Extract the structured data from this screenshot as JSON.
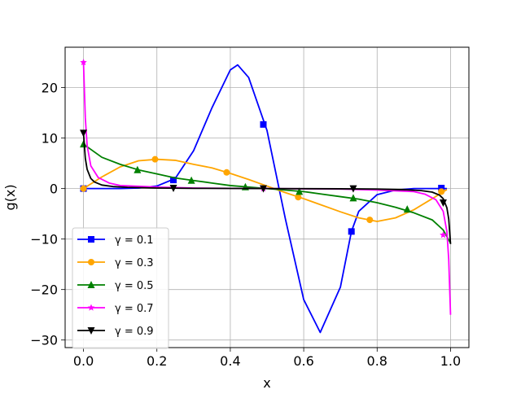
{
  "chart_data": {
    "type": "line",
    "title": "",
    "xlabel": "x",
    "ylabel": "g(x)",
    "xlim": [
      -0.05,
      1.05
    ],
    "ylim": [
      -31.5,
      28
    ],
    "xticks": [
      0.0,
      0.2,
      0.4,
      0.6,
      0.8,
      1.0
    ],
    "xtick_labels": [
      "0.0",
      "0.2",
      "0.4",
      "0.6",
      "0.8",
      "1.0"
    ],
    "yticks": [
      -30,
      -20,
      -10,
      0,
      10,
      20
    ],
    "ytick_labels": [
      "−30",
      "−20",
      "−10",
      "0",
      "10",
      "20"
    ],
    "grid": true,
    "legend_position": "lower-left",
    "series": [
      {
        "name": "γ = 0.1",
        "color": "#0000ff",
        "marker": "square",
        "x": [
          0.0,
          0.05,
          0.1,
          0.15,
          0.2,
          0.25,
          0.3,
          0.35,
          0.4,
          0.42,
          0.45,
          0.5,
          0.55,
          0.6,
          0.645,
          0.7,
          0.73,
          0.75,
          0.8,
          0.85,
          0.9,
          0.95,
          0.975,
          0.99
        ],
        "y": [
          0.0,
          0.0,
          0.0,
          0.1,
          0.5,
          2.0,
          7.5,
          16.0,
          23.5,
          24.5,
          22.0,
          11.5,
          -6.0,
          -22.0,
          -28.5,
          -19.5,
          -8.5,
          -4.5,
          -1.2,
          -0.3,
          0.0,
          0.0,
          0.0,
          0.0
        ],
        "marker_x": [
          0.0,
          0.245,
          0.49,
          0.73,
          0.975
        ],
        "marker_y": [
          0.0,
          1.7,
          12.7,
          -8.5,
          0.1
        ]
      },
      {
        "name": "γ = 0.3",
        "color": "#ffa500",
        "marker": "circle",
        "x": [
          0.0,
          0.05,
          0.1,
          0.15,
          0.2,
          0.25,
          0.3,
          0.35,
          0.4,
          0.45,
          0.5,
          0.55,
          0.6,
          0.65,
          0.7,
          0.75,
          0.8,
          0.85,
          0.9,
          0.95,
          0.99
        ],
        "y": [
          0.0,
          2.3,
          4.3,
          5.5,
          5.8,
          5.6,
          4.8,
          4.1,
          3.0,
          1.8,
          0.5,
          -0.8,
          -2.0,
          -3.3,
          -4.6,
          -5.8,
          -6.5,
          -5.8,
          -4.2,
          -2.0,
          -0.2
        ],
        "marker_x": [
          0.0,
          0.195,
          0.39,
          0.585,
          0.78,
          0.975
        ],
        "marker_y": [
          0.0,
          5.8,
          3.2,
          -1.7,
          -6.2,
          -0.6
        ]
      },
      {
        "name": "γ = 0.5",
        "color": "#008000",
        "marker": "triangle-up",
        "x": [
          0.0,
          0.05,
          0.1,
          0.15,
          0.2,
          0.25,
          0.3,
          0.35,
          0.4,
          0.45,
          0.5,
          0.55,
          0.6,
          0.65,
          0.7,
          0.75,
          0.8,
          0.85,
          0.9,
          0.95,
          0.98,
          1.0
        ],
        "y": [
          8.8,
          6.2,
          4.8,
          3.7,
          2.9,
          2.1,
          1.6,
          1.1,
          0.6,
          0.3,
          0.0,
          -0.3,
          -0.6,
          -1.1,
          -1.6,
          -2.1,
          -2.8,
          -3.7,
          -4.8,
          -6.2,
          -8.2,
          -10.8
        ],
        "marker_x": [
          0.0,
          0.147,
          0.294,
          0.441,
          0.588,
          0.735,
          0.882
        ],
        "marker_y": [
          8.8,
          3.7,
          1.6,
          0.3,
          -0.6,
          -1.9,
          -4.1
        ]
      },
      {
        "name": "γ = 0.7",
        "color": "#ff00ff",
        "marker": "star",
        "x": [
          0.0,
          0.005,
          0.01,
          0.02,
          0.04,
          0.07,
          0.1,
          0.2,
          0.3,
          0.4,
          0.5,
          0.6,
          0.7,
          0.8,
          0.9,
          0.93,
          0.96,
          0.98,
          0.99,
          0.995,
          1.0
        ],
        "y": [
          25.0,
          14.0,
          8.5,
          4.5,
          2.2,
          1.1,
          0.6,
          0.3,
          0.1,
          0.05,
          0.0,
          -0.05,
          -0.1,
          -0.3,
          -0.6,
          -1.1,
          -2.2,
          -4.5,
          -8.5,
          -14.0,
          -25.0
        ],
        "marker_x": [
          0.0,
          0.49,
          0.98
        ],
        "marker_y": [
          25.0,
          0.0,
          -9.2
        ]
      },
      {
        "name": "γ = 0.9",
        "color": "#000000",
        "marker": "triangle-down",
        "x": [
          0.0,
          0.005,
          0.01,
          0.02,
          0.03,
          0.05,
          0.08,
          0.12,
          0.2,
          0.3,
          0.5,
          0.7,
          0.8,
          0.88,
          0.92,
          0.95,
          0.97,
          0.98,
          0.99,
          0.995,
          1.0
        ],
        "y": [
          11.0,
          6.0,
          3.8,
          2.0,
          1.3,
          0.7,
          0.4,
          0.25,
          0.1,
          0.05,
          0.0,
          -0.05,
          -0.1,
          -0.25,
          -0.4,
          -0.7,
          -1.3,
          -2.0,
          -3.8,
          -6.0,
          -11.0
        ],
        "marker_x": [
          0.0,
          0.245,
          0.49,
          0.735,
          0.98
        ],
        "marker_y": [
          11.0,
          0.1,
          0.0,
          0.0,
          -2.8
        ]
      }
    ]
  }
}
